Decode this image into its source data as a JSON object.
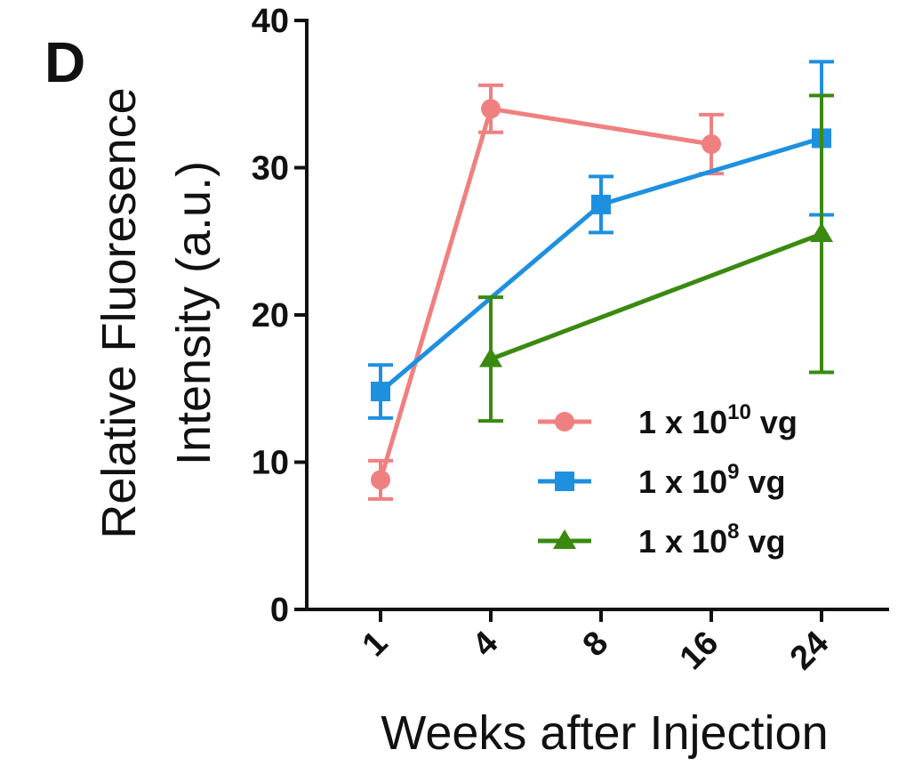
{
  "panel_label": "D",
  "chart_data": {
    "type": "line",
    "title": "",
    "xlabel": "Weeks after Injection",
    "ylabel_line1": "Relative Fluoresence",
    "ylabel_line2": "Intensity (a.u.)",
    "categories": [
      "1",
      "4",
      "8",
      "16",
      "24"
    ],
    "ylim": [
      0,
      40
    ],
    "yticks": [
      "0",
      "10",
      "20",
      "30",
      "40"
    ],
    "grid": false,
    "legend_position": "right-middle",
    "series": [
      {
        "name": "1 x 10^10 vg",
        "legend_base": "1 x 10",
        "legend_exp": "10",
        "legend_unit": " vg",
        "color": "#f08080",
        "marker": "circle",
        "values": [
          8.8,
          34.0,
          null,
          31.6,
          null
        ],
        "err": [
          1.3,
          1.6,
          null,
          2.0,
          null
        ]
      },
      {
        "name": "1 x 10^9 vg",
        "legend_base": "1 x 10",
        "legend_exp": "9",
        "legend_unit": " vg",
        "color": "#1e90e0",
        "marker": "square",
        "values": [
          14.8,
          null,
          27.5,
          null,
          32.0
        ],
        "err": [
          1.8,
          null,
          1.9,
          null,
          5.2
        ]
      },
      {
        "name": "1 x 10^8 vg",
        "legend_base": "1 x 10",
        "legend_exp": "8",
        "legend_unit": " vg",
        "color": "#3a8a10",
        "marker": "triangle",
        "values": [
          null,
          17.0,
          null,
          null,
          25.5
        ],
        "err": [
          null,
          4.2,
          null,
          null,
          9.4
        ]
      }
    ]
  }
}
